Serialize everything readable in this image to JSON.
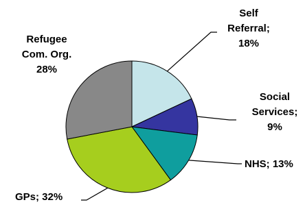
{
  "chart_data": {
    "type": "pie",
    "title": "",
    "start": "top, clockwise",
    "slices": [
      {
        "name": "Self Referral",
        "value": 18,
        "color": "#C5E5EA",
        "label_lines": [
          "Self",
          "Referral;",
          "18%"
        ]
      },
      {
        "name": "Social Services",
        "value": 9,
        "color": "#3535A0",
        "label_lines": [
          "Social",
          "Services;",
          "9%"
        ]
      },
      {
        "name": "NHS",
        "value": 13,
        "color": "#0F9E9E",
        "label_lines": [
          "NHS; 13%"
        ]
      },
      {
        "name": "GPs",
        "value": 32,
        "color": "#A6CE1E",
        "label_lines": [
          "GPs; 32%"
        ]
      },
      {
        "name": "Refugee Com. Org.",
        "value": 28,
        "color": "#888888",
        "label_lines": [
          "Refugee",
          "Com. Org.",
          "28%"
        ]
      }
    ]
  }
}
